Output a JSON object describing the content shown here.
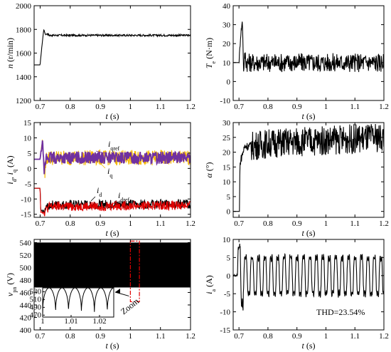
{
  "chart_data": [
    {
      "id": "speed",
      "type": "line",
      "xlabel_var": "t",
      "xlabel_unit": " (s)",
      "ylabel_var": "n",
      "ylabel_unit": " (r/min)",
      "xlim": [
        0.68,
        1.2
      ],
      "ylim": [
        1200,
        2000
      ],
      "xticks": [
        "0.7",
        "0.8",
        "0.9",
        "1",
        "1.1",
        "1.2"
      ],
      "yticks": [
        "1200",
        "1400",
        "1600",
        "1800",
        "2000"
      ],
      "series": [
        {
          "color": "#000000",
          "x": [
            0.68,
            0.7,
            0.705,
            0.712,
            0.718,
            0.724,
            0.73,
            1.2
          ],
          "y": [
            1500,
            1500,
            1640,
            1800,
            1755,
            1765,
            1750,
            1750
          ],
          "ripple": 8
        }
      ]
    },
    {
      "id": "torque",
      "type": "line",
      "xlabel_var": "t",
      "xlabel_unit": " (s)",
      "ylabel_var": "T",
      "ylabel_sub": "e",
      "ylabel_unit": " (N·m)",
      "xlim": [
        0.68,
        1.2
      ],
      "ylim": [
        -10,
        40
      ],
      "xticks": [
        "0.7",
        "0.8",
        "0.9",
        "1",
        "1.1",
        "1.2"
      ],
      "yticks": [
        "-10",
        "0",
        "10",
        "20",
        "30",
        "40"
      ],
      "series": [
        {
          "color": "#000000",
          "x": [
            0.68,
            0.7,
            0.706,
            0.712,
            0.716,
            0.72,
            0.726,
            1.2
          ],
          "y": [
            10,
            10,
            25,
            32,
            5,
            15,
            10,
            10
          ],
          "ripple": 5
        }
      ]
    },
    {
      "id": "currents",
      "type": "line",
      "xlabel_var": "t",
      "xlabel_unit": " (s)",
      "ylabel": "id, iq (A)",
      "xlim": [
        0.68,
        1.2
      ],
      "ylim": [
        -16,
        15
      ],
      "xticks": [
        "0.7",
        "0.8",
        "0.9",
        "1",
        "1.1",
        "1.2"
      ],
      "yticks": [
        "-15",
        "-10",
        "-5",
        "0",
        "5",
        "10",
        "15"
      ],
      "legend": [
        {
          "var": "i",
          "sub": "qref",
          "color": "#7030a0"
        },
        {
          "var": "i",
          "sub": "q",
          "color": "#f5b800"
        },
        {
          "var": "i",
          "sub": "d",
          "color": "#000000"
        },
        {
          "var": "i",
          "sub": "dref",
          "color": "#e00000"
        }
      ],
      "series": [
        {
          "name": "iq",
          "color": "#f5b800",
          "x": [
            0.68,
            0.7,
            0.708,
            0.714,
            0.72,
            1.2
          ],
          "y": [
            3,
            3,
            10,
            -3,
            3.5,
            3.5
          ],
          "ripple": 2.5
        },
        {
          "name": "iqref",
          "color": "#7030a0",
          "x": [
            0.68,
            0.7,
            0.708,
            0.714,
            0.72,
            1.2
          ],
          "y": [
            3,
            3,
            9,
            -2,
            3.5,
            3.5
          ],
          "ripple": 2
        },
        {
          "name": "id",
          "color": "#000000",
          "x": [
            0.68,
            0.7,
            0.702,
            0.712,
            0.73,
            1.2
          ],
          "y": [
            -6.5,
            -6.5,
            -14,
            -14,
            -12,
            -11.5
          ],
          "ripple": 1.5
        },
        {
          "name": "idref",
          "color": "#e00000",
          "x": [
            0.68,
            0.7,
            0.702,
            0.712,
            0.73,
            1.2
          ],
          "y": [
            -6.5,
            -6.5,
            -14,
            -14.5,
            -12.5,
            -12
          ],
          "ripple": 1.5
        }
      ]
    },
    {
      "id": "alpha",
      "type": "line",
      "xlabel_var": "t",
      "xlabel_unit": " (s)",
      "ylabel_var": "α",
      "ylabel_unit": " (°)",
      "xlim": [
        0.68,
        1.2
      ],
      "ylim": [
        -2,
        30
      ],
      "xticks": [
        "0.7",
        "0.8",
        "0.9",
        "1",
        "1.1",
        "1.2"
      ],
      "yticks": [
        "0",
        "5",
        "10",
        "15",
        "20",
        "25",
        "30"
      ],
      "series": [
        {
          "color": "#000000",
          "x": [
            0.68,
            0.702,
            0.703,
            0.705,
            0.72,
            0.74,
            0.8,
            1.2
          ],
          "y": [
            0,
            0,
            15,
            17,
            22,
            22,
            23,
            25
          ],
          "ripple": 5
        }
      ]
    },
    {
      "id": "vpn",
      "type": "area",
      "xlabel_var": "t",
      "xlabel_unit": " (s)",
      "ylabel_var": "v",
      "ylabel_sub": "pn",
      "ylabel_unit": " (V)",
      "xlim": [
        0.68,
        1.2
      ],
      "ylim": [
        400,
        545
      ],
      "xticks": [
        "0.7",
        "0.8",
        "0.9",
        "1",
        "1.1",
        "1.2"
      ],
      "yticks": [
        "400",
        "420",
        "440",
        "460",
        "480",
        "500",
        "520",
        "540"
      ],
      "band": {
        "x0": 0.68,
        "x1": 1.2,
        "ymin": 468,
        "ymax": 540
      },
      "zoom_box": {
        "x0": 1.0,
        "x1": 1.03
      },
      "zoom_label": "Zoom",
      "inset": {
        "xlim": [
          1.0,
          1.025
        ],
        "ylim": [
          465,
          540
        ],
        "xticks": [
          "1",
          "1.01",
          "1.02"
        ],
        "yticks": [
          "470",
          "490",
          "510",
          "530"
        ],
        "vmin": 468,
        "vmax": 540,
        "cycles": 5.5
      }
    },
    {
      "id": "ia",
      "type": "line",
      "xlabel_var": "t",
      "xlabel_unit": " (s)",
      "ylabel_var": "i",
      "ylabel_sub": "a",
      "ylabel_unit": " (A)",
      "xlim": [
        0.68,
        1.2
      ],
      "ylim": [
        -15,
        10
      ],
      "xticks": [
        "0.7",
        "0.8",
        "0.9",
        "1",
        "1.1",
        "1.2"
      ],
      "yticks": [
        "-15",
        "-10",
        "-5",
        "0",
        "5",
        "10"
      ],
      "annotation": "THD=23.54%",
      "series": [
        {
          "color": "#000000",
          "amplitude": 6,
          "frequency": 45,
          "start": 0.695
        }
      ]
    }
  ]
}
